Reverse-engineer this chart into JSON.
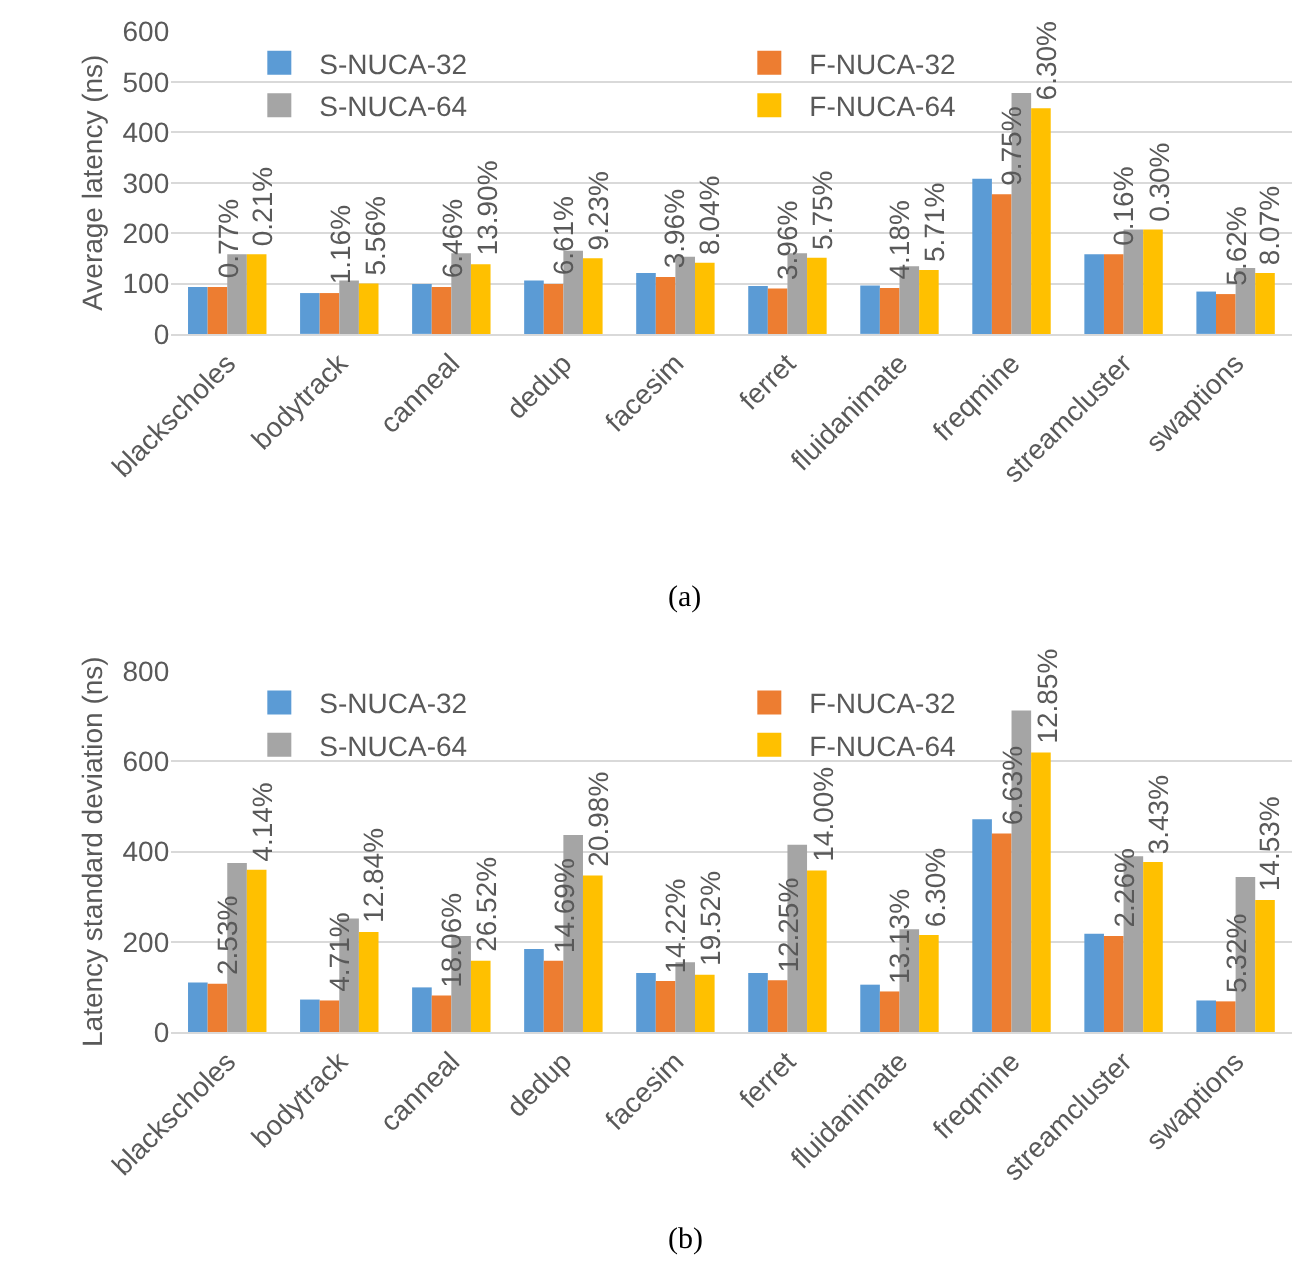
{
  "chart_data": [
    {
      "type": "bar",
      "ylabel": "Average latency (ns)",
      "categories": [
        "blackscholes",
        "bodytrack",
        "canneal",
        "dedup",
        "facesim",
        "ferret",
        "fluidanimate",
        "freqmine",
        "streamcluster",
        "swaptions"
      ],
      "series": [
        {
          "name": "S-NUCA-32",
          "color": "#5b9bd5",
          "values": [
            93,
            81,
            99,
            106,
            121,
            95,
            96,
            308,
            158,
            84
          ]
        },
        {
          "name": "F-NUCA-32",
          "color": "#ed7d31",
          "values": [
            93,
            81,
            93,
            99,
            113,
            90,
            91,
            277,
            158,
            79
          ]
        },
        {
          "name": "S-NUCA-64",
          "color": "#a5a5a5",
          "values": [
            158,
            106,
            160,
            165,
            153,
            160,
            134,
            478,
            207,
            131
          ]
        },
        {
          "name": "F-NUCA-64",
          "color": "#ffc000",
          "values": [
            158,
            100,
            138,
            150,
            141,
            151,
            127,
            448,
            207,
            121
          ]
        }
      ],
      "ylim": [
        0,
        600
      ],
      "yticks": [
        0,
        100,
        200,
        300,
        400,
        500,
        600
      ],
      "grid": "y",
      "legend": "top left",
      "annotations": [
        {
          "text": "0.77%",
          "x": "blackscholes",
          "y": 93
        },
        {
          "text": "0.21%",
          "x": "blackscholes",
          "y": 158
        },
        {
          "text": "1.16%",
          "x": "bodytrack",
          "y": 81
        },
        {
          "text": "5.56%",
          "x": "bodytrack",
          "y": 100
        },
        {
          "text": "6.46%",
          "x": "canneal",
          "y": 93
        },
        {
          "text": "13.90%",
          "x": "canneal",
          "y": 138
        },
        {
          "text": "6.61%",
          "x": "dedup",
          "y": 99
        },
        {
          "text": "9.23%",
          "x": "dedup",
          "y": 150
        },
        {
          "text": "3.96%",
          "x": "facesim",
          "y": 113
        },
        {
          "text": "8.04%",
          "x": "facesim",
          "y": 141
        },
        {
          "text": "3.96%",
          "x": "ferret",
          "y": 90
        },
        {
          "text": "5.75%",
          "x": "ferret",
          "y": 151
        },
        {
          "text": "4.18%",
          "x": "fluidanimate",
          "y": 91
        },
        {
          "text": "5.71%",
          "x": "fluidanimate",
          "y": 127
        },
        {
          "text": "9.75%",
          "x": "freqmine",
          "y": 277
        },
        {
          "text": "6.30%",
          "x": "freqmine",
          "y": 448
        },
        {
          "text": "0.16%",
          "x": "streamcluster",
          "y": 158
        },
        {
          "text": "0.30%",
          "x": "streamcluster",
          "y": 207
        },
        {
          "text": "5.62%",
          "x": "swaptions",
          "y": 79
        },
        {
          "text": "8.07%",
          "x": "swaptions",
          "y": 121
        },
        "(a)"
      ]
    },
    {
      "type": "bar",
      "ylabel": "Latency standard deviation (ns)",
      "categories": [
        "blackscholes",
        "bodytrack",
        "canneal",
        "dedup",
        "facesim",
        "ferret",
        "fluidanimate",
        "freqmine",
        "streamcluster",
        "swaptions"
      ],
      "series": [
        {
          "name": "S-NUCA-32",
          "color": "#5b9bd5",
          "values": [
            110,
            72,
            99,
            184,
            131,
            131,
            105,
            472,
            218,
            70
          ]
        },
        {
          "name": "F-NUCA-32",
          "color": "#ed7d31",
          "values": [
            107,
            70,
            81,
            158,
            113,
            115,
            90,
            440,
            213,
            68
          ]
        },
        {
          "name": "S-NUCA-64",
          "color": "#a5a5a5",
          "values": [
            375,
            252,
            213,
            437,
            155,
            415,
            228,
            713,
            390,
            344
          ]
        },
        {
          "name": "F-NUCA-64",
          "color": "#ffc000",
          "values": [
            360,
            222,
            158,
            347,
            127,
            358,
            215,
            620,
            377,
            293
          ]
        }
      ],
      "ylim": [
        0,
        800
      ],
      "yticks": [
        0,
        200,
        400,
        600,
        800
      ],
      "grid": "y",
      "legend": "top left",
      "annotations": [
        {
          "text": "2.53%",
          "x": "blackscholes",
          "y": 107
        },
        {
          "text": "4.14%",
          "x": "blackscholes",
          "y": 360
        },
        {
          "text": "4.71%",
          "x": "bodytrack",
          "y": 70
        },
        {
          "text": "12.84%",
          "x": "bodytrack",
          "y": 222
        },
        {
          "text": "18.06%",
          "x": "canneal",
          "y": 81
        },
        {
          "text": "26.52%",
          "x": "canneal",
          "y": 158
        },
        {
          "text": "14.69%",
          "x": "dedup",
          "y": 158
        },
        {
          "text": "20.98%",
          "x": "dedup",
          "y": 347
        },
        {
          "text": "14.22%",
          "x": "facesim",
          "y": 113
        },
        {
          "text": "19.52%",
          "x": "facesim",
          "y": 127
        },
        {
          "text": "12.25%",
          "x": "ferret",
          "y": 115
        },
        {
          "text": "14.00%",
          "x": "ferret",
          "y": 358
        },
        {
          "text": "13.13%",
          "x": "fluidanimate",
          "y": 90
        },
        {
          "text": "6.30%",
          "x": "fluidanimate",
          "y": 215
        },
        {
          "text": "6.63%",
          "x": "freqmine",
          "y": 440
        },
        {
          "text": "12.85%",
          "x": "freqmine",
          "y": 620
        },
        {
          "text": "2.26%",
          "x": "streamcluster",
          "y": 213
        },
        {
          "text": "3.43%",
          "x": "streamcluster",
          "y": 377
        },
        {
          "text": "5.32%",
          "x": "swaptions",
          "y": 68
        },
        {
          "text": "14.53%",
          "x": "swaptions",
          "y": 293
        },
        "(b)"
      ]
    }
  ]
}
